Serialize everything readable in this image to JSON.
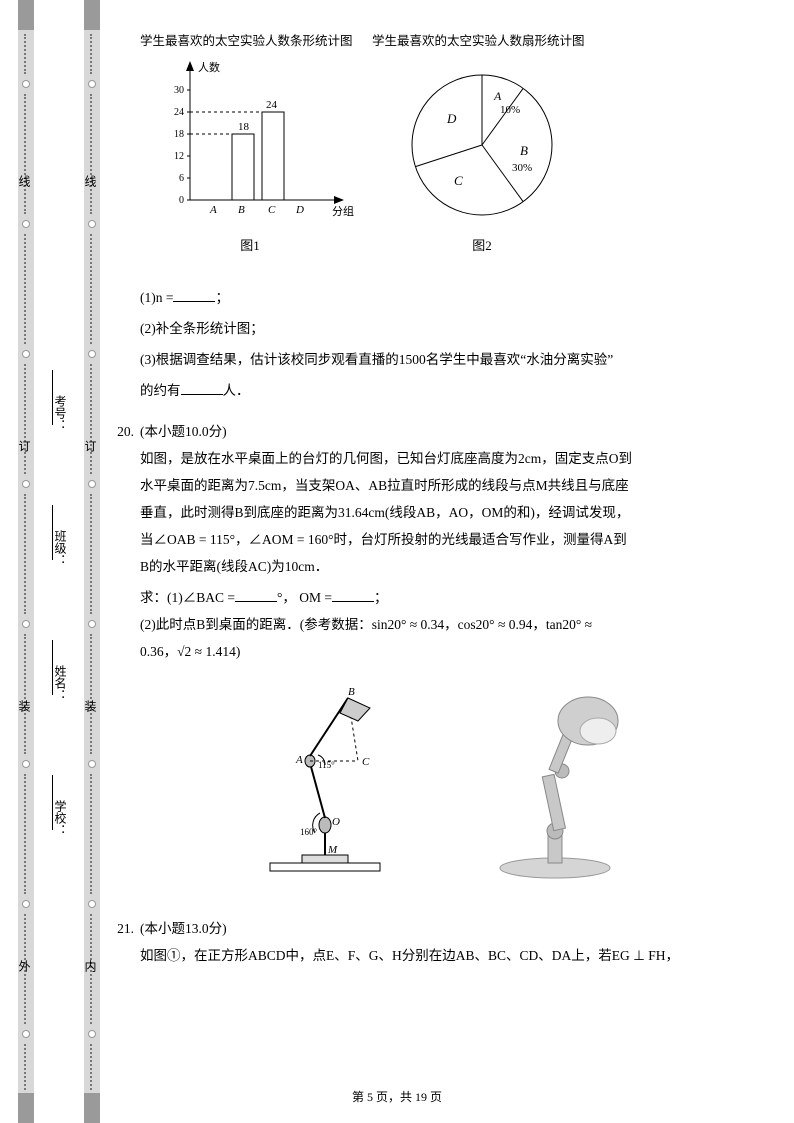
{
  "binding": {
    "outer_top": "线",
    "outer_mid": "订",
    "outer_bot1": "装",
    "outer_bot2": "外",
    "inner_top": "线",
    "inner_mid": "订",
    "inner_bot1": "装",
    "inner_bot2": "内"
  },
  "form": {
    "exam_no": "考号：",
    "class": "班级：",
    "name": "姓名：",
    "school": "学校："
  },
  "charts": {
    "bar": {
      "title": "学生最喜欢的太空实验人数条形统计图",
      "ylabel": "人数",
      "xlabel": "分组",
      "categories": [
        "A",
        "B",
        "C",
        "D"
      ],
      "values": [
        null,
        18,
        24,
        null
      ],
      "value_labels": {
        "B": "18",
        "C": "24"
      },
      "yticks": [
        0,
        6,
        12,
        18,
        24,
        30
      ],
      "ylim": [
        0,
        30
      ],
      "axis_color": "#000",
      "bar_fill": "#ffffff",
      "bar_stroke": "#000",
      "caption": "图1"
    },
    "pie": {
      "title": "学生最喜欢的太空实验人数扇形统计图",
      "slices": [
        {
          "label": "A",
          "pct_label": "10%",
          "pct": 10
        },
        {
          "label": "B",
          "pct_label": "30%",
          "pct": 30
        },
        {
          "label": "C",
          "pct_label": "",
          "pct": 40
        },
        {
          "label": "D",
          "pct_label": "",
          "pct": 20
        }
      ],
      "stroke": "#000",
      "fill": "#ffffff",
      "caption": "图2"
    }
  },
  "q19": {
    "s1": "(1)n =",
    "s1_tail": "；",
    "s2": "(2)补全条形统计图；",
    "s3a": "(3)根据调查结果，估计该校同步观看直播的1500名学生中最喜欢“水油分离实验”",
    "s3b": "的约有",
    "s3c": "人．"
  },
  "q20": {
    "num": "20.",
    "pts": "(本小题10.0分)",
    "p1": "如图，是放在水平桌面上的台灯的几何图，已知台灯底座高度为2cm，固定支点O到",
    "p2": "水平桌面的距离为7.5cm，当支架OA、AB拉直时所形成的线段与点M共线且与底座",
    "p3": "垂直，此时测得B到底座的距离为31.64cm(线段AB，AO，OM的和)，经调试发现，",
    "p4": "当∠OAB = 115°，∠AOM = 160°时，台灯所投射的光线最适合写作业，测量得A到",
    "p5": "B的水平距离(线段AC)为10cm．",
    "ask1a": "求：(1)∠BAC =",
    "ask1b": "°，  OM =",
    "ask1c": "；",
    "ask2": "(2)此时点B到桌面的距离．(参考数据：sin20° ≈ 0.34，cos20° ≈ 0.94，tan20° ≈",
    "ask2b": "0.36，√2 ≈ 1.414)"
  },
  "lamp_diagram": {
    "labels": {
      "B": "B",
      "A": "A",
      "C": "C",
      "O": "O",
      "M": "M",
      "ang1": "115°",
      "ang2": "160°"
    }
  },
  "q21": {
    "num": "21.",
    "pts": "(本小题13.0分)",
    "p1": "如图①，在正方形ABCD中，点E、F、G、H分别在边AB、BC、CD、DA上，若EG ⊥ FH，"
  },
  "footer": {
    "page": "第 5 页，共 19 页"
  }
}
